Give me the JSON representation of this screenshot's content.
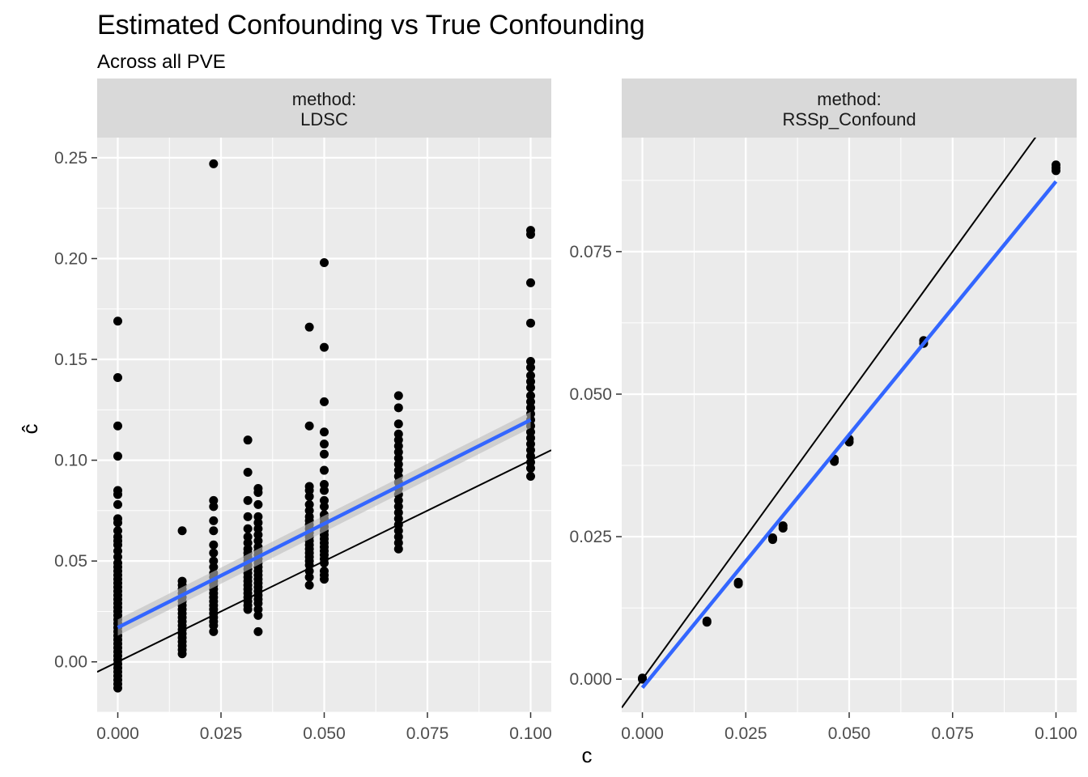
{
  "chart_data": {
    "type": "scatter",
    "title": "Estimated Confounding vs True Confounding",
    "subtitle": "Across all PVE",
    "xlabel": "c",
    "ylabel": "ĉ",
    "grid": true,
    "legend": "none",
    "colors": {
      "panel_bg": "#ebebeb",
      "grid": "#ffffff",
      "strip_bg": "#d9d9d9",
      "points": "#000000",
      "fit_line": "#3366ff",
      "fit_band": "#bdbdbd",
      "identity_line": "#000000"
    },
    "panels": [
      {
        "strip_line1": "method:",
        "strip_line2": "LDSC",
        "xlim": [
          -0.005,
          0.105
        ],
        "ylim": [
          -0.025,
          0.26
        ],
        "x_ticks": [
          0.0,
          0.025,
          0.05,
          0.075,
          0.1
        ],
        "x_tick_labels": [
          "0.000",
          "0.025",
          "0.050",
          "0.075",
          "0.100"
        ],
        "y_ticks": [
          0.0,
          0.05,
          0.1,
          0.15,
          0.2,
          0.25
        ],
        "y_tick_labels": [
          "0.00",
          "0.05",
          "0.10",
          "0.15",
          "0.20",
          "0.25"
        ],
        "identity_line": {
          "slope": 1,
          "intercept": 0
        },
        "fit_line": {
          "x": [
            0.0,
            0.1
          ],
          "y": [
            0.017,
            0.12
          ],
          "band_width": 0.004
        },
        "points": [
          [
            0.0,
            0.169
          ],
          [
            0.0,
            0.141
          ],
          [
            0.0,
            0.117
          ],
          [
            0.0,
            0.102
          ],
          [
            0.0,
            0.085
          ],
          [
            0.0,
            0.083
          ],
          [
            0.0,
            0.078
          ],
          [
            0.0,
            0.071
          ],
          [
            0.0,
            0.069
          ],
          [
            0.0,
            0.065
          ],
          [
            0.0,
            0.062
          ],
          [
            0.0,
            0.06
          ],
          [
            0.0,
            0.058
          ],
          [
            0.0,
            0.055
          ],
          [
            0.0,
            0.052
          ],
          [
            0.0,
            0.049
          ],
          [
            0.0,
            0.047
          ],
          [
            0.0,
            0.045
          ],
          [
            0.0,
            0.043
          ],
          [
            0.0,
            0.041
          ],
          [
            0.0,
            0.039
          ],
          [
            0.0,
            0.037
          ],
          [
            0.0,
            0.035
          ],
          [
            0.0,
            0.033
          ],
          [
            0.0,
            0.031
          ],
          [
            0.0,
            0.029
          ],
          [
            0.0,
            0.027
          ],
          [
            0.0,
            0.025
          ],
          [
            0.0,
            0.023
          ],
          [
            0.0,
            0.021
          ],
          [
            0.0,
            0.019
          ],
          [
            0.0,
            0.017
          ],
          [
            0.0,
            0.015
          ],
          [
            0.0,
            0.013
          ],
          [
            0.0,
            0.011
          ],
          [
            0.0,
            0.009
          ],
          [
            0.0,
            0.007
          ],
          [
            0.0,
            0.005
          ],
          [
            0.0,
            0.003
          ],
          [
            0.0,
            0.001
          ],
          [
            0.0,
            -0.001
          ],
          [
            0.0,
            -0.003
          ],
          [
            0.0,
            -0.005
          ],
          [
            0.0,
            -0.007
          ],
          [
            0.0,
            -0.009
          ],
          [
            0.0,
            -0.011
          ],
          [
            0.0,
            -0.013
          ],
          [
            0.0156,
            0.065
          ],
          [
            0.0156,
            0.04
          ],
          [
            0.0156,
            0.038
          ],
          [
            0.0156,
            0.036
          ],
          [
            0.0156,
            0.034
          ],
          [
            0.0156,
            0.032
          ],
          [
            0.0156,
            0.03
          ],
          [
            0.0156,
            0.028
          ],
          [
            0.0156,
            0.026
          ],
          [
            0.0156,
            0.024
          ],
          [
            0.0156,
            0.022
          ],
          [
            0.0156,
            0.02
          ],
          [
            0.0156,
            0.018
          ],
          [
            0.0156,
            0.016
          ],
          [
            0.0156,
            0.014
          ],
          [
            0.0156,
            0.012
          ],
          [
            0.0156,
            0.01
          ],
          [
            0.0156,
            0.008
          ],
          [
            0.0156,
            0.006
          ],
          [
            0.0156,
            0.004
          ],
          [
            0.0232,
            0.247
          ],
          [
            0.0232,
            0.08
          ],
          [
            0.0232,
            0.077
          ],
          [
            0.0232,
            0.07
          ],
          [
            0.0232,
            0.065
          ],
          [
            0.0232,
            0.058
          ],
          [
            0.0232,
            0.054
          ],
          [
            0.0232,
            0.05
          ],
          [
            0.0232,
            0.047
          ],
          [
            0.0232,
            0.044
          ],
          [
            0.0232,
            0.042
          ],
          [
            0.0232,
            0.04
          ],
          [
            0.0232,
            0.038
          ],
          [
            0.0232,
            0.036
          ],
          [
            0.0232,
            0.034
          ],
          [
            0.0232,
            0.032
          ],
          [
            0.0232,
            0.03
          ],
          [
            0.0232,
            0.028
          ],
          [
            0.0232,
            0.026
          ],
          [
            0.0232,
            0.024
          ],
          [
            0.0232,
            0.022
          ],
          [
            0.0232,
            0.02
          ],
          [
            0.0232,
            0.018
          ],
          [
            0.0232,
            0.015
          ],
          [
            0.0315,
            0.11
          ],
          [
            0.0315,
            0.094
          ],
          [
            0.0315,
            0.08
          ],
          [
            0.0315,
            0.072
          ],
          [
            0.0315,
            0.066
          ],
          [
            0.0315,
            0.062
          ],
          [
            0.0315,
            0.059
          ],
          [
            0.0315,
            0.056
          ],
          [
            0.0315,
            0.054
          ],
          [
            0.0315,
            0.052
          ],
          [
            0.0315,
            0.05
          ],
          [
            0.0315,
            0.048
          ],
          [
            0.0315,
            0.046
          ],
          [
            0.0315,
            0.044
          ],
          [
            0.0315,
            0.042
          ],
          [
            0.0315,
            0.04
          ],
          [
            0.0315,
            0.038
          ],
          [
            0.0315,
            0.036
          ],
          [
            0.0315,
            0.034
          ],
          [
            0.0315,
            0.032
          ],
          [
            0.0315,
            0.03
          ],
          [
            0.0315,
            0.028
          ],
          [
            0.0315,
            0.026
          ],
          [
            0.034,
            0.086
          ],
          [
            0.034,
            0.084
          ],
          [
            0.034,
            0.078
          ],
          [
            0.034,
            0.072
          ],
          [
            0.034,
            0.069
          ],
          [
            0.034,
            0.066
          ],
          [
            0.034,
            0.063
          ],
          [
            0.034,
            0.06
          ],
          [
            0.034,
            0.057
          ],
          [
            0.034,
            0.055
          ],
          [
            0.034,
            0.053
          ],
          [
            0.034,
            0.051
          ],
          [
            0.034,
            0.049
          ],
          [
            0.034,
            0.047
          ],
          [
            0.034,
            0.045
          ],
          [
            0.034,
            0.043
          ],
          [
            0.034,
            0.041
          ],
          [
            0.034,
            0.039
          ],
          [
            0.034,
            0.037
          ],
          [
            0.034,
            0.035
          ],
          [
            0.034,
            0.033
          ],
          [
            0.034,
            0.031
          ],
          [
            0.034,
            0.029
          ],
          [
            0.034,
            0.026
          ],
          [
            0.034,
            0.023
          ],
          [
            0.034,
            0.015
          ],
          [
            0.0464,
            0.166
          ],
          [
            0.0464,
            0.117
          ],
          [
            0.0464,
            0.087
          ],
          [
            0.0464,
            0.085
          ],
          [
            0.0464,
            0.082
          ],
          [
            0.0464,
            0.078
          ],
          [
            0.0464,
            0.075
          ],
          [
            0.0464,
            0.072
          ],
          [
            0.0464,
            0.07
          ],
          [
            0.0464,
            0.068
          ],
          [
            0.0464,
            0.066
          ],
          [
            0.0464,
            0.064
          ],
          [
            0.0464,
            0.062
          ],
          [
            0.0464,
            0.06
          ],
          [
            0.0464,
            0.058
          ],
          [
            0.0464,
            0.056
          ],
          [
            0.0464,
            0.054
          ],
          [
            0.0464,
            0.052
          ],
          [
            0.0464,
            0.05
          ],
          [
            0.0464,
            0.048
          ],
          [
            0.0464,
            0.045
          ],
          [
            0.0464,
            0.042
          ],
          [
            0.0464,
            0.038
          ],
          [
            0.05,
            0.198
          ],
          [
            0.05,
            0.156
          ],
          [
            0.05,
            0.129
          ],
          [
            0.05,
            0.114
          ],
          [
            0.05,
            0.108
          ],
          [
            0.05,
            0.103
          ],
          [
            0.05,
            0.095
          ],
          [
            0.05,
            0.088
          ],
          [
            0.05,
            0.085
          ],
          [
            0.05,
            0.08
          ],
          [
            0.05,
            0.077
          ],
          [
            0.05,
            0.073
          ],
          [
            0.05,
            0.071
          ],
          [
            0.05,
            0.069
          ],
          [
            0.05,
            0.067
          ],
          [
            0.05,
            0.065
          ],
          [
            0.05,
            0.063
          ],
          [
            0.05,
            0.061
          ],
          [
            0.05,
            0.059
          ],
          [
            0.05,
            0.057
          ],
          [
            0.05,
            0.055
          ],
          [
            0.05,
            0.053
          ],
          [
            0.05,
            0.051
          ],
          [
            0.05,
            0.049
          ],
          [
            0.05,
            0.045
          ],
          [
            0.05,
            0.043
          ],
          [
            0.05,
            0.041
          ],
          [
            0.068,
            0.132
          ],
          [
            0.068,
            0.126
          ],
          [
            0.068,
            0.118
          ],
          [
            0.068,
            0.113
          ],
          [
            0.068,
            0.11
          ],
          [
            0.068,
            0.107
          ],
          [
            0.068,
            0.104
          ],
          [
            0.068,
            0.101
          ],
          [
            0.068,
            0.098
          ],
          [
            0.068,
            0.095
          ],
          [
            0.068,
            0.092
          ],
          [
            0.068,
            0.089
          ],
          [
            0.068,
            0.086
          ],
          [
            0.068,
            0.083
          ],
          [
            0.068,
            0.08
          ],
          [
            0.068,
            0.077
          ],
          [
            0.068,
            0.074
          ],
          [
            0.068,
            0.071
          ],
          [
            0.068,
            0.068
          ],
          [
            0.068,
            0.065
          ],
          [
            0.068,
            0.062
          ],
          [
            0.068,
            0.059
          ],
          [
            0.068,
            0.056
          ],
          [
            0.1,
            0.214
          ],
          [
            0.1,
            0.212
          ],
          [
            0.1,
            0.188
          ],
          [
            0.1,
            0.168
          ],
          [
            0.1,
            0.149
          ],
          [
            0.1,
            0.146
          ],
          [
            0.1,
            0.142
          ],
          [
            0.1,
            0.139
          ],
          [
            0.1,
            0.136
          ],
          [
            0.1,
            0.132
          ],
          [
            0.1,
            0.129
          ],
          [
            0.1,
            0.126
          ],
          [
            0.1,
            0.123
          ],
          [
            0.1,
            0.12
          ],
          [
            0.1,
            0.117
          ],
          [
            0.1,
            0.114
          ],
          [
            0.1,
            0.111
          ],
          [
            0.1,
            0.108
          ],
          [
            0.1,
            0.105
          ],
          [
            0.1,
            0.102
          ],
          [
            0.1,
            0.099
          ],
          [
            0.1,
            0.096
          ],
          [
            0.1,
            0.092
          ]
        ]
      },
      {
        "strip_line1": "method:",
        "strip_line2": "RSSp_Confound",
        "xlim": [
          -0.005,
          0.105
        ],
        "ylim": [
          -0.0058,
          0.095
        ],
        "x_ticks": [
          0.0,
          0.025,
          0.05,
          0.075,
          0.1
        ],
        "x_tick_labels": [
          "0.000",
          "0.025",
          "0.050",
          "0.075",
          "0.100"
        ],
        "y_ticks": [
          0.0,
          0.025,
          0.05,
          0.075
        ],
        "y_tick_labels": [
          "0.000",
          "0.025",
          "0.050",
          "0.075"
        ],
        "identity_line": {
          "slope": 1,
          "intercept": 0
        },
        "fit_line": {
          "x": [
            0.0,
            0.1
          ],
          "y": [
            -0.0015,
            0.0873
          ],
          "band_width": 0.0
        },
        "points": [
          [
            0.0,
            0.0
          ],
          [
            0.0,
            0.0002
          ],
          [
            0.0156,
            0.01
          ],
          [
            0.0156,
            0.0102
          ],
          [
            0.0232,
            0.0167
          ],
          [
            0.0232,
            0.017
          ],
          [
            0.0315,
            0.0245
          ],
          [
            0.0315,
            0.0248
          ],
          [
            0.034,
            0.0265
          ],
          [
            0.034,
            0.0269
          ],
          [
            0.0464,
            0.0382
          ],
          [
            0.0464,
            0.0386
          ],
          [
            0.05,
            0.0416
          ],
          [
            0.05,
            0.0421
          ],
          [
            0.068,
            0.0589
          ],
          [
            0.068,
            0.0594
          ],
          [
            0.1,
            0.0892
          ],
          [
            0.1,
            0.0897
          ],
          [
            0.1,
            0.0902
          ]
        ]
      }
    ]
  }
}
